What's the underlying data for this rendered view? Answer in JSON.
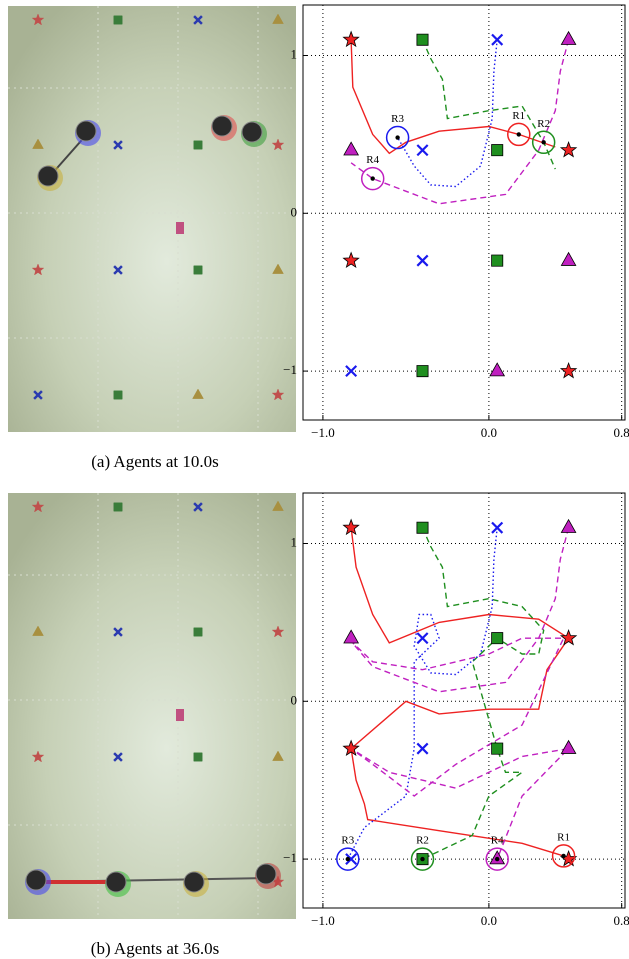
{
  "captions": [
    "(a) Agents at 10.0s",
    "(b) Agents at 36.0s"
  ],
  "chart_data": [
    {
      "type": "scatter",
      "xlim": [
        -1.12,
        0.82
      ],
      "ylim": [
        -1.31,
        1.32
      ],
      "xticks": [
        {
          "value": -1,
          "label": "−1.0"
        },
        {
          "value": 0,
          "label": "0.0"
        },
        {
          "value": 0.8,
          "label": "0.8"
        }
      ],
      "yticks": [
        {
          "value": -1,
          "label": "−1"
        },
        0,
        1
      ],
      "grid": true,
      "series": [
        {
          "marker": "star",
          "color": "#ee2222",
          "x": [
            -0.83,
            0.48,
            -0.83,
            0.48
          ],
          "y": [
            1.1,
            0.4,
            -0.3,
            -1.0
          ]
        },
        {
          "marker": "square",
          "color": "#1f8f1f",
          "x": [
            -0.4,
            0.05,
            0.05,
            -0.4
          ],
          "y": [
            1.1,
            0.4,
            -0.3,
            -1.0
          ]
        },
        {
          "marker": "cross",
          "color": "#1a1aee",
          "x": [
            0.05,
            -0.4,
            -0.4,
            -0.83
          ],
          "y": [
            1.1,
            0.4,
            -0.3,
            -1.0
          ]
        },
        {
          "marker": "triangle",
          "color": "#c020c0",
          "x": [
            0.48,
            -0.83,
            0.48,
            0.05
          ],
          "y": [
            1.1,
            0.4,
            -0.3,
            -1.0
          ]
        }
      ],
      "trajectories": [
        {
          "color": "#ee2222",
          "dash": "solid",
          "x": [
            -0.83,
            -0.82,
            -0.7,
            -0.6,
            -0.5,
            -0.3,
            0.0,
            0.18,
            0.4
          ],
          "y": [
            1.1,
            0.8,
            0.5,
            0.38,
            0.45,
            0.52,
            0.55,
            0.5,
            0.42
          ]
        },
        {
          "color": "#1f8f1f",
          "dash": "dashed",
          "x": [
            -0.4,
            -0.35,
            -0.28,
            -0.25,
            0.0,
            0.2,
            0.33,
            0.4
          ],
          "y": [
            1.1,
            0.98,
            0.85,
            0.6,
            0.65,
            0.68,
            0.45,
            0.28
          ]
        },
        {
          "color": "#1a1aee",
          "dash": "dotted",
          "x": [
            0.05,
            0.03,
            0.02,
            -0.05,
            -0.2,
            -0.35,
            -0.45,
            -0.55
          ],
          "y": [
            1.1,
            0.9,
            0.6,
            0.3,
            0.17,
            0.18,
            0.3,
            0.48
          ]
        },
        {
          "color": "#c020c0",
          "dash": "dashed",
          "x": [
            0.48,
            0.43,
            0.4,
            0.3,
            0.1,
            -0.3,
            -0.7,
            -0.83
          ],
          "y": [
            1.1,
            0.9,
            0.65,
            0.4,
            0.12,
            0.06,
            0.22,
            0.32
          ]
        }
      ],
      "robots": {
        "labels": [
          "R1",
          "R2",
          "R3",
          "R4"
        ],
        "colors": [
          "#ee2222",
          "#1f8f1f",
          "#1a1aee",
          "#c020c0"
        ],
        "x": [
          0.18,
          0.33,
          -0.55,
          -0.7
        ],
        "y": [
          0.5,
          0.45,
          0.48,
          0.22
        ]
      }
    },
    {
      "type": "scatter",
      "xlim": [
        -1.12,
        0.82
      ],
      "ylim": [
        -1.31,
        1.32
      ],
      "xticks": [
        {
          "value": -1,
          "label": "−1.0"
        },
        {
          "value": 0,
          "label": "0.0"
        },
        {
          "value": 0.8,
          "label": "0.8"
        }
      ],
      "yticks": [
        {
          "value": -1,
          "label": "−1"
        },
        0,
        1
      ],
      "grid": true,
      "series": [
        {
          "marker": "star",
          "color": "#ee2222",
          "x": [
            -0.83,
            0.48,
            -0.83,
            0.48
          ],
          "y": [
            1.1,
            0.4,
            -0.3,
            -1.0
          ]
        },
        {
          "marker": "square",
          "color": "#1f8f1f",
          "x": [
            -0.4,
            0.05,
            0.05,
            -0.4
          ],
          "y": [
            1.1,
            0.4,
            -0.3,
            -1.0
          ]
        },
        {
          "marker": "cross",
          "color": "#1a1aee",
          "x": [
            0.05,
            -0.4,
            -0.4,
            -0.83
          ],
          "y": [
            1.1,
            0.4,
            -0.3,
            -1.0
          ]
        },
        {
          "marker": "triangle",
          "color": "#c020c0",
          "x": [
            0.48,
            -0.83,
            0.48,
            0.05
          ],
          "y": [
            1.1,
            0.4,
            -0.3,
            -1.0
          ]
        }
      ],
      "trajectories": [
        {
          "color": "#ee2222",
          "dash": "solid",
          "x": [
            -0.83,
            -0.8,
            -0.7,
            -0.6,
            -0.3,
            0.0,
            0.3,
            0.48,
            0.35,
            0.3,
            0.0,
            -0.3,
            -0.5,
            -0.83,
            -0.8,
            -0.75,
            -0.73,
            -0.3,
            0.2,
            0.45
          ],
          "y": [
            1.1,
            0.85,
            0.55,
            0.37,
            0.5,
            0.55,
            0.52,
            0.4,
            0.2,
            -0.05,
            -0.05,
            -0.08,
            0.0,
            -0.3,
            -0.5,
            -0.65,
            -0.75,
            -0.82,
            -0.9,
            -0.98
          ]
        },
        {
          "color": "#1f8f1f",
          "dash": "dashed",
          "x": [
            -0.4,
            -0.35,
            -0.28,
            -0.25,
            0.0,
            0.2,
            0.33,
            0.3,
            0.2,
            0.05,
            -0.1,
            0.05,
            0.1,
            0.2,
            0.0,
            -0.1,
            -0.4
          ],
          "y": [
            1.1,
            0.98,
            0.85,
            0.6,
            0.65,
            0.6,
            0.45,
            0.3,
            0.3,
            0.4,
            0.25,
            -0.3,
            -0.45,
            -0.45,
            -0.6,
            -0.85,
            -1.0
          ]
        },
        {
          "color": "#1a1aee",
          "dash": "dotted",
          "x": [
            0.05,
            0.03,
            0.02,
            -0.05,
            -0.2,
            -0.35,
            -0.45,
            -0.42,
            -0.35,
            -0.3,
            -0.45,
            -0.45,
            -0.5,
            -0.75,
            -0.85
          ],
          "y": [
            1.1,
            0.9,
            0.6,
            0.3,
            0.17,
            0.18,
            0.35,
            0.55,
            0.55,
            0.4,
            0.25,
            -0.3,
            -0.6,
            -0.8,
            -1.0
          ]
        },
        {
          "color": "#c020c0",
          "dash": "dashed",
          "x": [
            0.48,
            0.43,
            0.4,
            0.3,
            0.1,
            -0.3,
            -0.7,
            -0.83,
            -0.7,
            -0.4,
            0.0,
            0.2,
            0.45,
            0.2,
            -0.2,
            -0.45,
            -0.7,
            -0.83,
            -0.6,
            -0.2,
            0.2,
            0.48,
            0.2,
            0.05
          ],
          "y": [
            1.1,
            0.9,
            0.65,
            0.4,
            0.12,
            0.06,
            0.22,
            0.38,
            0.25,
            0.2,
            0.3,
            0.4,
            0.4,
            -0.15,
            -0.4,
            -0.6,
            -0.4,
            -0.3,
            -0.45,
            -0.55,
            -0.35,
            -0.3,
            -0.6,
            -1.0
          ]
        }
      ],
      "robots": {
        "labels": [
          "R1",
          "R2",
          "R3",
          "R4"
        ],
        "colors": [
          "#ee2222",
          "#1f8f1f",
          "#1a1aee",
          "#c020c0"
        ],
        "x": [
          0.45,
          -0.4,
          -0.85,
          0.05
        ],
        "y": [
          -0.98,
          -1.0,
          -1.0,
          -1.0
        ]
      }
    }
  ]
}
